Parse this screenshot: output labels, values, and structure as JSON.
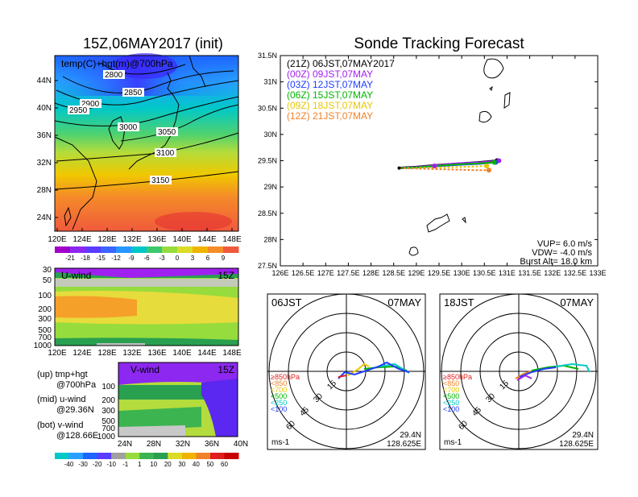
{
  "left_title": "15Z,06MAY2017 (init)",
  "main_title": "Sonde Tracking Forecast",
  "temp_panel": {
    "label": "temp(C)+hgt(m)@700hPa",
    "y_ticks": [
      "44N",
      "40N",
      "36N",
      "32N",
      "28N",
      "24N"
    ],
    "x_ticks": [
      "120E",
      "124E",
      "128E",
      "132E",
      "136E",
      "140E",
      "144E",
      "148E"
    ],
    "contours": [
      "2800",
      "2850",
      "2900",
      "2950",
      "3000",
      "3050",
      "3100",
      "3150"
    ],
    "colorbar": [
      "-21",
      "-18",
      "-15",
      "-12",
      "-9",
      "-6",
      "-3",
      "0",
      "3",
      "6",
      "9"
    ]
  },
  "u_panel": {
    "label": "U-wind",
    "time": "15Z",
    "y_ticks": [
      "30",
      "50",
      "100",
      "200",
      "300",
      "500",
      "700",
      "1000"
    ],
    "x_ticks": [
      "120E",
      "124E",
      "128E",
      "132E",
      "136E",
      "140E",
      "144E",
      "148E"
    ]
  },
  "v_panel": {
    "label": "V-wind",
    "time": "15Z",
    "y_ticks": [
      "100",
      "200",
      "300",
      "500",
      "700",
      "1000"
    ],
    "x_ticks": [
      "24N",
      "28N",
      "32N",
      "36N",
      "40N"
    ]
  },
  "wind_colorbar": [
    "-40",
    "-30",
    "-20",
    "-10",
    "-1",
    "1",
    "10",
    "20",
    "30",
    "40",
    "50",
    "60"
  ],
  "legend_text": {
    "up_1": "(up) tmp+hgt",
    "up_2": "@700hPa",
    "mid_1": "(mid) u-wind",
    "mid_2": "@29.36N",
    "bot_1": "(bot) v-wind",
    "bot_2": "@128.66E"
  },
  "track_panel": {
    "y_ticks": [
      "31.5N",
      "31N",
      "30.5N",
      "30N",
      "29.5N",
      "29N",
      "28.5N",
      "28N",
      "27.5N"
    ],
    "x_ticks": [
      "126E",
      "126.5E",
      "127E",
      "127.5E",
      "128E",
      "128.5E",
      "129E",
      "129.5E",
      "130E",
      "130.5E",
      "131E",
      "131.5E",
      "132E",
      "132.5E",
      "133E"
    ],
    "legend": [
      {
        "text": "(21Z)  06JST,07MAY2017",
        "color": "#000000"
      },
      {
        "text": "(00Z)  09JST,07MAY",
        "color": "#a020f0"
      },
      {
        "text": "(03Z)  12JST,07MAY",
        "color": "#1e3cff"
      },
      {
        "text": "(06Z)  15JST,07MAY",
        "color": "#00b400"
      },
      {
        "text": "(09Z)  18JST,07MAY",
        "color": "#e6c800"
      },
      {
        "text": "(12Z)  21JST,07MAY",
        "color": "#f08228"
      }
    ],
    "vup": "VUP=  6.0  m/s",
    "vdw": "VDW= -4.0  m/s",
    "burst": "Burst Alt=  18.0  km"
  },
  "hodo_left": {
    "time": "06JST",
    "date": "07MAY",
    "rings": [
      "15",
      "30",
      "45",
      "60"
    ],
    "levels": [
      {
        "text": "≥850hPa",
        "color": "#e01e1e"
      },
      {
        "text": "<850",
        "color": "#f08228"
      },
      {
        "text": "<700",
        "color": "#e6c800"
      },
      {
        "text": "<500",
        "color": "#00b400"
      },
      {
        "text": "<250",
        "color": "#00c8c8"
      },
      {
        "text": "<100",
        "color": "#1e3cff"
      }
    ],
    "unit": "ms-1",
    "lat": "29.4N",
    "lon": "128.625E"
  },
  "hodo_right": {
    "time": "18JST",
    "date": "07MAY",
    "rings": [
      "15",
      "30",
      "45",
      "60"
    ],
    "unit": "ms-1",
    "lat": "29.4N",
    "lon": "128.625E"
  },
  "colors": {
    "black": "#000000",
    "purple": "#a020f0",
    "blue": "#1e3cff",
    "green": "#00b400",
    "yellow": "#e6c800",
    "orange": "#f08228"
  },
  "chart_data": [
    {
      "type": "line",
      "title": "Sonde Tracking Forecast",
      "xlim": [
        126,
        133
      ],
      "ylim": [
        27.5,
        31.5
      ],
      "series": [
        {
          "name": "(21Z)  06JST,07MAY2017",
          "x": [
            128.62,
            129.0,
            129.4,
            129.9,
            130.4,
            130.78
          ],
          "y": [
            29.36,
            29.38,
            29.41,
            29.44,
            29.47,
            29.5
          ]
        },
        {
          "name": "(00Z)  09JST,07MAY",
          "x": [
            128.62,
            129.0,
            129.4,
            129.9,
            130.4,
            130.82
          ],
          "y": [
            29.36,
            29.38,
            29.41,
            29.45,
            29.47,
            29.5
          ]
        },
        {
          "name": "(03Z)  12JST,07MAY",
          "x": [
            128.62,
            129.0,
            129.4,
            129.9,
            130.4,
            130.75
          ],
          "y": [
            29.36,
            29.37,
            29.39,
            29.42,
            29.44,
            29.47
          ]
        },
        {
          "name": "(06Z)  15JST,07MAY",
          "x": [
            128.62,
            129.0,
            129.4,
            129.9,
            130.4,
            130.72
          ],
          "y": [
            29.36,
            29.37,
            29.4,
            29.43,
            29.45,
            29.47
          ]
        },
        {
          "name": "(09Z)  18JST,07MAY",
          "x": [
            128.62,
            129.0,
            129.4,
            129.9,
            130.3,
            130.55
          ],
          "y": [
            29.36,
            29.36,
            29.37,
            29.38,
            29.39,
            29.4
          ]
        },
        {
          "name": "(12Z)  21JST,07MAY",
          "x": [
            128.62,
            129.0,
            129.4,
            129.9,
            130.3,
            130.6
          ],
          "y": [
            29.36,
            29.35,
            29.34,
            29.33,
            29.32,
            29.32
          ]
        }
      ]
    }
  ]
}
